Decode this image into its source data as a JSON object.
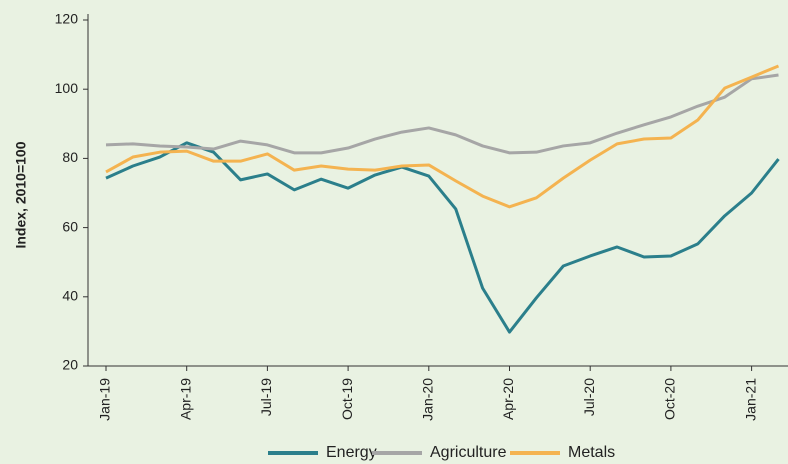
{
  "chart_data": {
    "type": "line",
    "ylabel": "Index, 2010=100",
    "categories": [
      "Jan-19",
      null,
      null,
      "Apr-19",
      null,
      null,
      "Jul-19",
      null,
      null,
      "Oct-19",
      null,
      null,
      "Jan-20",
      null,
      null,
      "Apr-20",
      null,
      null,
      "Jul-20",
      null,
      null,
      "Oct-20",
      null,
      null,
      "Jan-21",
      null
    ],
    "series": [
      {
        "name": "Energy",
        "color": "#2b7f8b",
        "values": [
          74.3,
          77.8,
          80.4,
          84.5,
          81.8,
          73.8,
          75.5,
          70.9,
          74,
          71.4,
          75.2,
          77.5,
          74.9,
          65.4,
          42.5,
          29.8,
          39.7,
          48.9,
          51.8,
          54.4,
          51.5,
          51.8,
          55.3,
          63.4,
          70,
          79.8
        ]
      },
      {
        "name": "Agriculture",
        "color": "#a6a6a6",
        "values": [
          83.9,
          84.2,
          83.6,
          83.3,
          82.7,
          85,
          83.9,
          81.6,
          81.6,
          83,
          85.6,
          87.6,
          88.8,
          86.8,
          83.6,
          81.6,
          81.8,
          83.6,
          84.5,
          87.3,
          89.7,
          92,
          95.1,
          97.7,
          103,
          104.1
        ]
      },
      {
        "name": "Metals",
        "color": "#f4b350",
        "values": [
          76.1,
          80.4,
          81.8,
          82.1,
          79.2,
          79.2,
          81.3,
          76.6,
          77.8,
          76.9,
          76.6,
          77.8,
          78.1,
          73.5,
          69.1,
          66,
          68.6,
          74.3,
          79.5,
          84.2,
          85.6,
          85.9,
          91.1,
          100.3,
          103.5,
          106.7
        ]
      }
    ],
    "ylim": [
      20,
      120
    ],
    "yticks": [
      20,
      40,
      60,
      80,
      100,
      120
    ],
    "legend": "bottom"
  }
}
